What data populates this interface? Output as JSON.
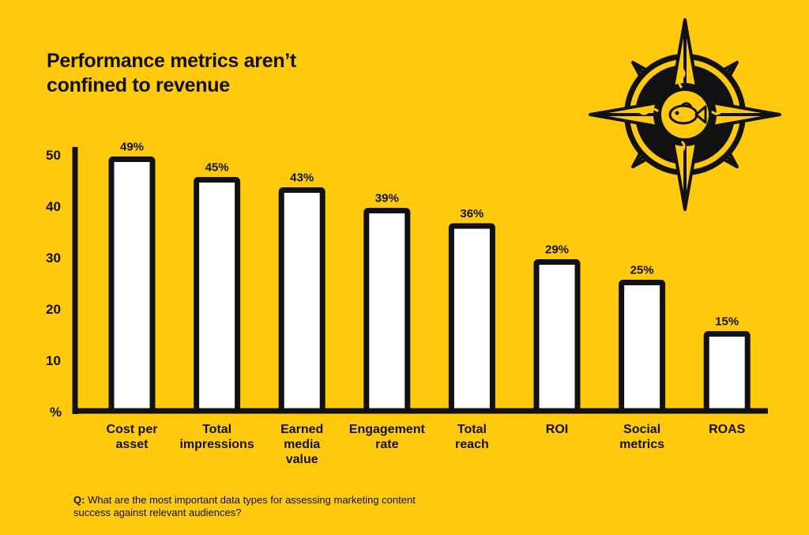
{
  "title_lines": [
    "Performance metrics aren’t",
    "confined to revenue"
  ],
  "question": {
    "label": "Q:",
    "text": " What are the most important data types for assessing marketing content success against relevant audiences?"
  },
  "colors": {
    "background": "#FFC90E",
    "bar_fill": "#FFFFFF",
    "ink": "#111111"
  },
  "emblem": {
    "icon": "compass-rose-fish-icon"
  },
  "chart_data": {
    "type": "bar",
    "title": "Performance metrics aren’t confined to revenue",
    "ylabel": "%",
    "ylim": [
      0,
      50
    ],
    "yticks": [
      10,
      20,
      30,
      40,
      50
    ],
    "grid": false,
    "categories": [
      [
        "Cost per",
        "asset"
      ],
      [
        "Total",
        "impressions"
      ],
      [
        "Earned",
        "media",
        "value"
      ],
      [
        "Engagement",
        "rate"
      ],
      [
        "Total",
        "reach"
      ],
      [
        "ROI"
      ],
      [
        "Social",
        "metrics"
      ],
      [
        "ROAS"
      ]
    ],
    "values": [
      49,
      45,
      43,
      39,
      36,
      29,
      25,
      15
    ],
    "data_labels": [
      "49%",
      "45%",
      "43%",
      "39%",
      "36%",
      "29%",
      "25%",
      "15%"
    ]
  }
}
